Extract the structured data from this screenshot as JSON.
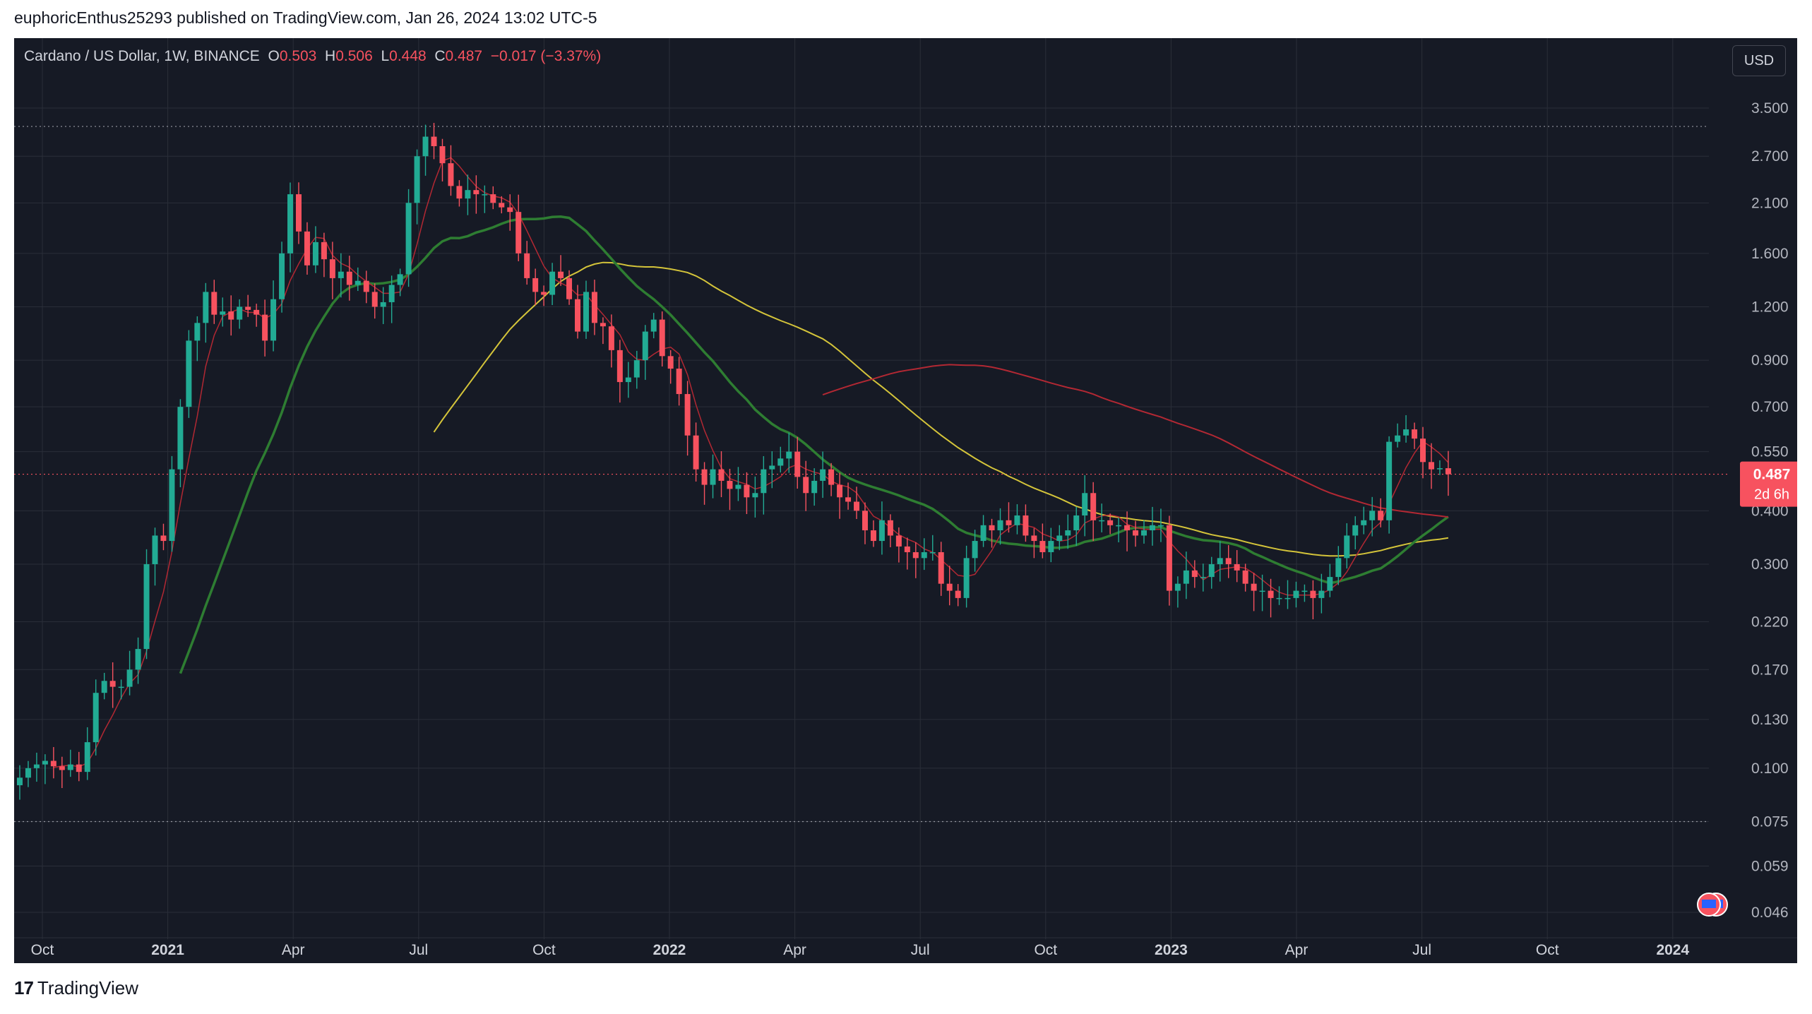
{
  "publication": {
    "text": "euphoricEnthus25293 published on TradingView.com, Jan 26, 2024 13:02 UTC-5"
  },
  "legend": {
    "symbol": "Cardano / US Dollar, 1W, BINANCE",
    "o_label": "O",
    "o_value": "0.503",
    "h_label": "H",
    "h_value": "0.506",
    "l_label": "L",
    "l_value": "0.448",
    "c_label": "C",
    "c_value": "0.487",
    "change": "−0.017 (−3.37%)"
  },
  "currency_button": "USD",
  "price_tag": {
    "price": "0.487",
    "countdown": "2d 6h"
  },
  "footer": {
    "brand": "TradingView",
    "logo_glyph": "17"
  },
  "colors": {
    "up": "#22ab94",
    "down": "#f7525f",
    "background": "#161a25",
    "grid": "#2a2e39",
    "ma_fast": "#b22833",
    "ma_mid": "#2e7d32",
    "ma_slow": "#d4c43a",
    "ma_long": "#b22833"
  },
  "chart_data": {
    "type": "candlestick",
    "scale": "log",
    "y_ticks": [
      "3.500",
      "2.700",
      "2.100",
      "1.600",
      "1.200",
      "0.900",
      "0.700",
      "0.550",
      "0.400",
      "0.300",
      "0.220",
      "0.170",
      "0.130",
      "0.100",
      "0.075",
      "0.059",
      "0.046"
    ],
    "x_ticks": [
      {
        "label": "Oct",
        "t": "2020-10",
        "bold": false
      },
      {
        "label": "2021",
        "t": "2021-01",
        "bold": true
      },
      {
        "label": "Apr",
        "t": "2021-04",
        "bold": false
      },
      {
        "label": "Jul",
        "t": "2021-07",
        "bold": false
      },
      {
        "label": "Oct",
        "t": "2021-10",
        "bold": false
      },
      {
        "label": "2022",
        "t": "2022-01",
        "bold": true
      },
      {
        "label": "Apr",
        "t": "2022-04",
        "bold": false
      },
      {
        "label": "Jul",
        "t": "2022-07",
        "bold": false
      },
      {
        "label": "Oct",
        "t": "2022-10",
        "bold": false
      },
      {
        "label": "2023",
        "t": "2023-01",
        "bold": true
      },
      {
        "label": "Apr",
        "t": "2023-04",
        "bold": false
      },
      {
        "label": "Jul",
        "t": "2023-07",
        "bold": false
      },
      {
        "label": "Oct",
        "t": "2023-10",
        "bold": false
      },
      {
        "label": "2024",
        "t": "2024-01",
        "bold": true
      }
    ],
    "horizontal_levels": [
      3.17,
      0.075
    ],
    "current_price": 0.487,
    "closes": [
      0.095,
      0.1,
      0.102,
      0.104,
      0.101,
      0.099,
      0.102,
      0.098,
      0.115,
      0.15,
      0.16,
      0.155,
      0.155,
      0.17,
      0.19,
      0.3,
      0.35,
      0.34,
      0.5,
      0.7,
      1.0,
      1.1,
      1.3,
      1.15,
      1.17,
      1.12,
      1.2,
      1.18,
      1.15,
      1.0,
      1.25,
      1.6,
      2.2,
      1.8,
      1.5,
      1.7,
      1.55,
      1.4,
      1.45,
      1.35,
      1.38,
      1.3,
      1.2,
      1.23,
      1.35,
      1.43,
      2.1,
      2.7,
      3.0,
      2.85,
      2.6,
      2.3,
      2.15,
      2.25,
      2.2,
      2.2,
      2.1,
      2.05,
      2.0,
      1.6,
      1.4,
      1.3,
      1.28,
      1.45,
      1.4,
      1.25,
      1.05,
      1.3,
      1.1,
      1.08,
      0.95,
      0.8,
      0.82,
      0.9,
      1.05,
      1.12,
      0.92,
      0.86,
      0.75,
      0.6,
      0.5,
      0.46,
      0.5,
      0.47,
      0.45,
      0.46,
      0.43,
      0.44,
      0.5,
      0.51,
      0.53,
      0.55,
      0.48,
      0.44,
      0.47,
      0.5,
      0.46,
      0.43,
      0.42,
      0.4,
      0.36,
      0.34,
      0.38,
      0.35,
      0.33,
      0.32,
      0.31,
      0.32,
      0.32,
      0.27,
      0.26,
      0.25,
      0.31,
      0.34,
      0.37,
      0.36,
      0.38,
      0.37,
      0.39,
      0.35,
      0.34,
      0.32,
      0.34,
      0.35,
      0.36,
      0.39,
      0.44,
      0.38,
      0.38,
      0.37,
      0.37,
      0.36,
      0.35,
      0.36,
      0.37,
      0.37,
      0.26,
      0.27,
      0.29,
      0.28,
      0.28,
      0.3,
      0.31,
      0.3,
      0.29,
      0.27,
      0.26,
      0.26,
      0.25,
      0.25,
      0.25,
      0.26,
      0.26,
      0.25,
      0.26,
      0.28,
      0.31,
      0.35,
      0.37,
      0.38,
      0.4,
      0.38,
      0.58,
      0.6,
      0.62,
      0.59,
      0.52,
      0.5,
      0.503,
      0.487
    ]
  }
}
